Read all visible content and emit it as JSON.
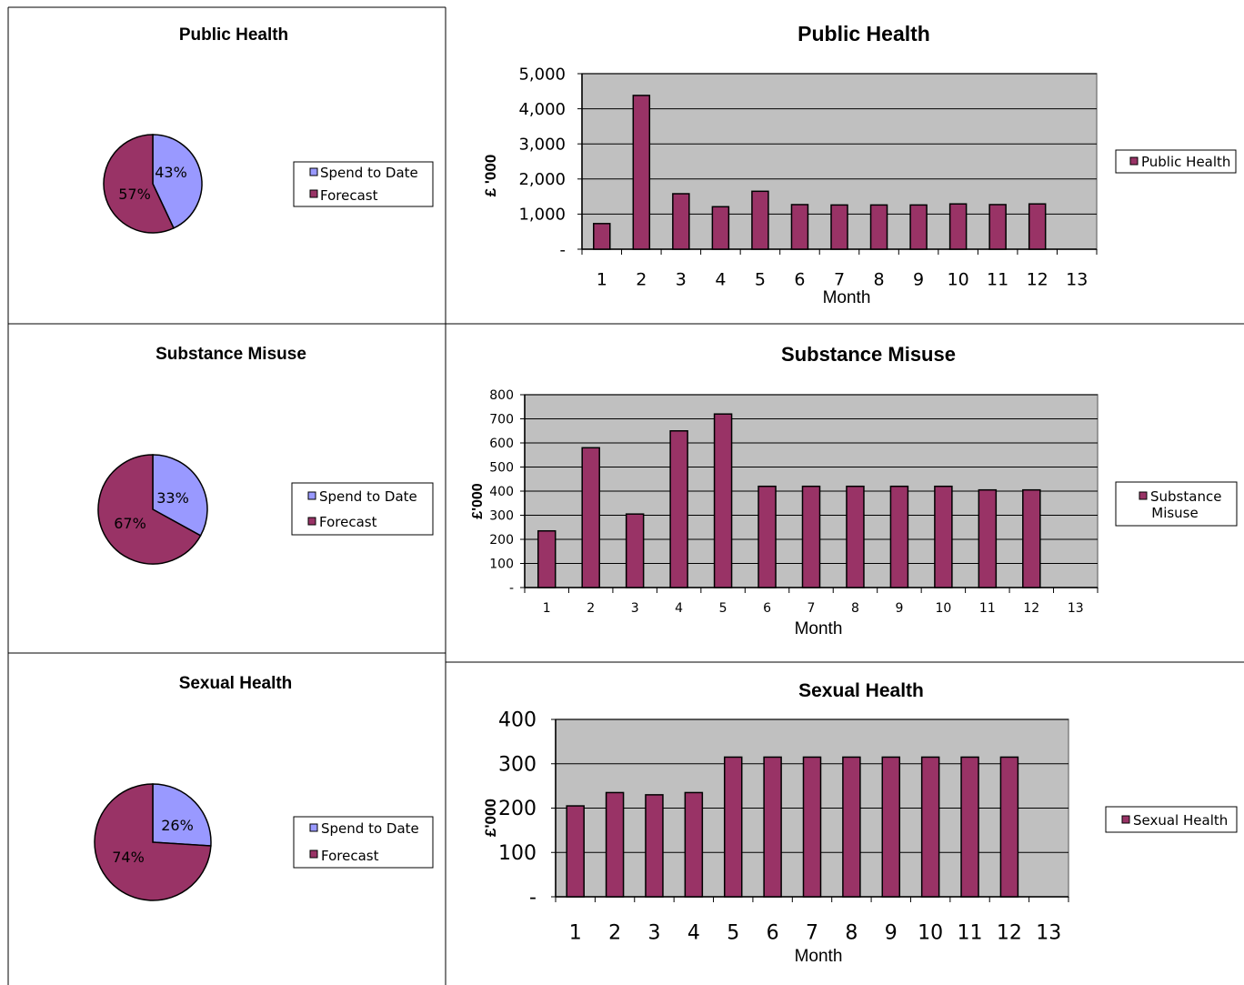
{
  "colors": {
    "spend": "#9999ff",
    "forecast": "#993366",
    "plot_bg": "#c0c0c0"
  },
  "panels": [
    {
      "pie": {
        "title": "Public Health",
        "legend": [
          "Spend to Date",
          "Forecast"
        ],
        "chart_data": {
          "type": "pie",
          "labels": [
            "Spend to Date",
            "Forecast"
          ],
          "values": [
            43,
            57
          ],
          "value_labels": [
            "43%",
            "57%"
          ]
        }
      },
      "bar": {
        "title": "Public Health",
        "ylabel": "£ '000",
        "xlabel": "Month",
        "legend": "Public Health",
        "chart_data": {
          "type": "bar",
          "categories": [
            "1",
            "2",
            "3",
            "4",
            "5",
            "6",
            "7",
            "8",
            "9",
            "10",
            "11",
            "12",
            "13"
          ],
          "values": [
            730,
            4380,
            1580,
            1210,
            1650,
            1270,
            1260,
            1260,
            1260,
            1290,
            1270,
            1290,
            null
          ],
          "ylim": [
            0,
            5000
          ],
          "yticks": [
            0,
            1000,
            2000,
            3000,
            4000,
            5000
          ],
          "ytick_labels": [
            "-",
            "1,000",
            "2,000",
            "3,000",
            "4,000",
            "5,000"
          ]
        }
      }
    },
    {
      "pie": {
        "title": "Substance Misuse",
        "legend": [
          "Spend to Date",
          "Forecast"
        ],
        "chart_data": {
          "type": "pie",
          "labels": [
            "Spend to Date",
            "Forecast"
          ],
          "values": [
            33,
            67
          ],
          "value_labels": [
            "33%",
            "67%"
          ]
        }
      },
      "bar": {
        "title": "Substance Misuse",
        "ylabel": "£'000",
        "xlabel": "Month",
        "legend": [
          "Substance",
          "Misuse"
        ],
        "chart_data": {
          "type": "bar",
          "categories": [
            "1",
            "2",
            "3",
            "4",
            "5",
            "6",
            "7",
            "8",
            "9",
            "10",
            "11",
            "12",
            "13"
          ],
          "values": [
            235,
            580,
            305,
            650,
            720,
            420,
            420,
            420,
            420,
            420,
            405,
            405,
            null
          ],
          "ylim": [
            0,
            800
          ],
          "yticks": [
            0,
            100,
            200,
            300,
            400,
            500,
            600,
            700,
            800
          ],
          "ytick_labels": [
            "-",
            "100",
            "200",
            "300",
            "400",
            "500",
            "600",
            "700",
            "800"
          ]
        }
      }
    },
    {
      "pie": {
        "title": "Sexual Health",
        "legend": [
          "Spend to Date",
          "Forecast"
        ],
        "chart_data": {
          "type": "pie",
          "labels": [
            "Spend to Date",
            "Forecast"
          ],
          "values": [
            26,
            74
          ],
          "value_labels": [
            "26%",
            "74%"
          ]
        }
      },
      "bar": {
        "title": "Sexual Health",
        "ylabel": "£'000",
        "xlabel": "Month",
        "legend": "Sexual Health",
        "chart_data": {
          "type": "bar",
          "categories": [
            "1",
            "2",
            "3",
            "4",
            "5",
            "6",
            "7",
            "8",
            "9",
            "10",
            "11",
            "12",
            "13"
          ],
          "values": [
            205,
            235,
            230,
            235,
            315,
            315,
            315,
            315,
            315,
            315,
            315,
            315,
            null
          ],
          "ylim": [
            0,
            400
          ],
          "yticks": [
            0,
            100,
            200,
            300,
            400
          ],
          "ytick_labels": [
            "-",
            "100",
            "200",
            "300",
            "400"
          ]
        }
      }
    }
  ]
}
